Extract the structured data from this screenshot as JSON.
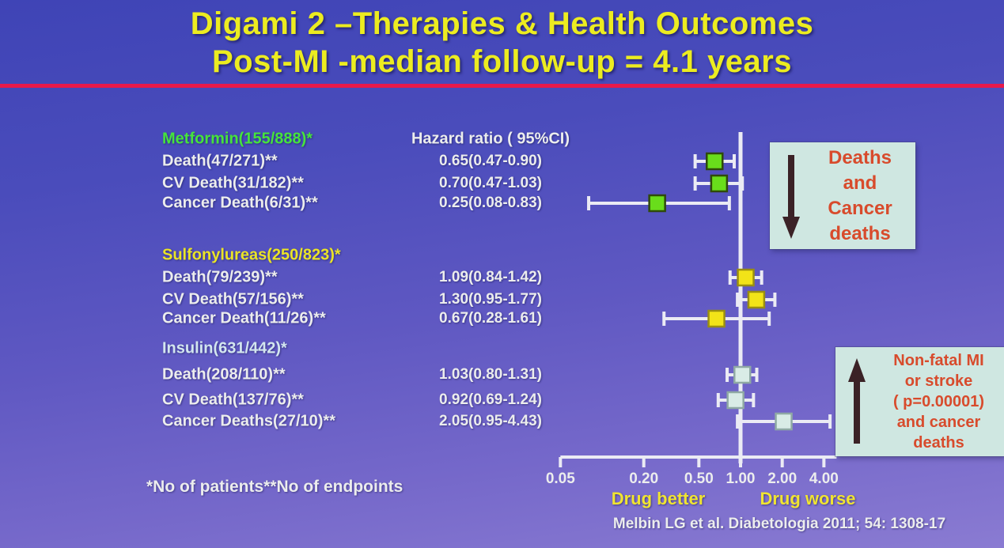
{
  "slide": {
    "title_line1": "Digami 2 –Therapies & Health Outcomes",
    "title_line2": "Post-MI -median follow-up = 4.1 years",
    "footnote": "*No of patients**No of endpoints",
    "citation": "Melbin LG  et al. Diabetologia 2011; 54: 1308-17"
  },
  "table": {
    "hr_header": "Hazard ratio ( 95%CI)"
  },
  "chart_data": {
    "type": "forest",
    "x_scale": "log",
    "reference_value": 1.0,
    "axis_ticks": [
      {
        "value": 0.05,
        "label": "0.05"
      },
      {
        "value": 0.2,
        "label": "0.20"
      },
      {
        "value": 0.5,
        "label": "0.50"
      },
      {
        "value": 1.0,
        "label": "1.00"
      },
      {
        "value": 2.0,
        "label": "2.00"
      },
      {
        "value": 4.0,
        "label": "4.00"
      }
    ],
    "axis_label_left": "Drug better",
    "axis_label_right": "Drug worse",
    "groups": [
      {
        "name": "Metformin(155/888)*",
        "label_color": "#46e33c",
        "marker_color": "#69dd1b",
        "marker_stroke": "#2f4a0a",
        "rows": [
          {
            "label": "Death(47/271)**",
            "hr_text": "0.65(0.47-0.90)",
            "hr": 0.65,
            "ci_low": 0.47,
            "ci_high": 0.9
          },
          {
            "label": "CV Death(31/182)**",
            "hr_text": "0.70(0.47-1.03)",
            "hr": 0.7,
            "ci_low": 0.47,
            "ci_high": 1.03
          },
          {
            "label": "Cancer Death(6/31)**",
            "hr_text": "0.25(0.08-0.83)",
            "hr": 0.25,
            "ci_low": 0.08,
            "ci_high": 0.83
          }
        ]
      },
      {
        "name": "Sulfonylureas(250/823)*",
        "label_color": "#eae426",
        "marker_color": "#f2e318",
        "marker_stroke": "#9a8e10",
        "rows": [
          {
            "label": "Death(79/239)**",
            "hr_text": "1.09(0.84-1.42)",
            "hr": 1.09,
            "ci_low": 0.84,
            "ci_high": 1.42
          },
          {
            "label": "CV Death(57/156)**",
            "hr_text": "1.30(0.95-1.77)",
            "hr": 1.3,
            "ci_low": 0.95,
            "ci_high": 1.77
          },
          {
            "label": "Cancer Death(11/26)**",
            "hr_text": "0.67(0.28-1.61)",
            "hr": 0.67,
            "ci_low": 0.28,
            "ci_high": 1.61
          }
        ]
      },
      {
        "name": "Insulin(631/442)*",
        "label_color": "#d3e6ef",
        "marker_color": "#d9ece6",
        "marker_stroke": "#8fa9a4",
        "rows": [
          {
            "label": "Death(208/110)**",
            "hr_text": "1.03(0.80-1.31)",
            "hr": 1.03,
            "ci_low": 0.8,
            "ci_high": 1.31
          },
          {
            "label": "CV Death(137/76)**",
            "hr_text": "0.92(0.69-1.24)",
            "hr": 0.92,
            "ci_low": 0.69,
            "ci_high": 1.24
          },
          {
            "label": "Cancer Deaths(27/10)**",
            "hr_text": "2.05(0.95-4.43)",
            "hr": 2.05,
            "ci_low": 0.95,
            "ci_high": 4.43
          }
        ]
      }
    ]
  },
  "callouts": {
    "box1": {
      "lines": [
        "Deaths",
        "and",
        "Cancer",
        "deaths"
      ],
      "arrow": "down"
    },
    "box2": {
      "lines": [
        "Non-fatal MI",
        "or stroke",
        "( p=0.00001)",
        "and cancer",
        "deaths"
      ],
      "arrow": "up"
    }
  },
  "colors": {
    "background_top": "#3f44b6",
    "background_bottom": "#8a7bd2",
    "title": "#ecec20",
    "divider": "#e8194a",
    "text": "#eceded",
    "accent_yellow": "#f0e431",
    "whisker": "#ebebf4",
    "callout_bg": "#cfe7e1",
    "callout_text": "#d84b2c",
    "arrow": "#3b2226"
  }
}
